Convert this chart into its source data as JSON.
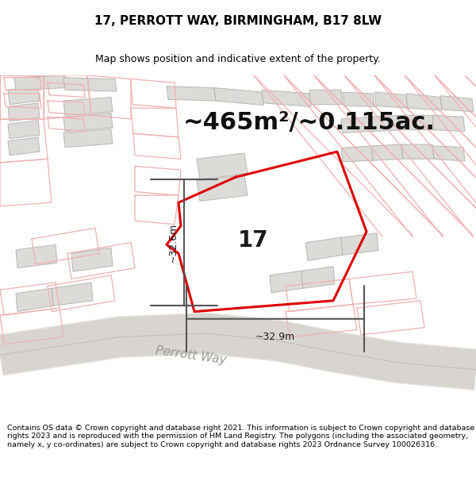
{
  "title": "17, PERROTT WAY, BIRMINGHAM, B17 8LW",
  "subtitle": "Map shows position and indicative extent of the property.",
  "area_label": "~465m²/~0.115ac.",
  "number_label": "17",
  "dim_horiz": "~32.9m",
  "dim_vert": "~32.6m",
  "road_label": "Perrott Way",
  "footer": "Contains OS data © Crown copyright and database right 2021. This information is subject to Crown copyright and database rights 2023 and is reproduced with the permission of HM Land Registry. The polygons (including the associated geometry, namely x, y co-ordinates) are subject to Crown copyright and database rights 2023 Ordnance Survey 100026316.",
  "bg_color": "#ffffff",
  "map_bg": "#f8f8f6",
  "plot_color": "#dd0000",
  "building_fill": "#dddbd8",
  "building_edge": "#b8b6b2",
  "road_fill": "#e8e6e2",
  "pink_line": "#f0b0b0",
  "road_center": "#d8d5d0",
  "dim_color": "#555555",
  "title_fontsize": 11,
  "subtitle_fontsize": 9,
  "area_fontsize": 22,
  "number_fontsize": 20,
  "dim_fontsize": 9,
  "road_fontsize": 11
}
